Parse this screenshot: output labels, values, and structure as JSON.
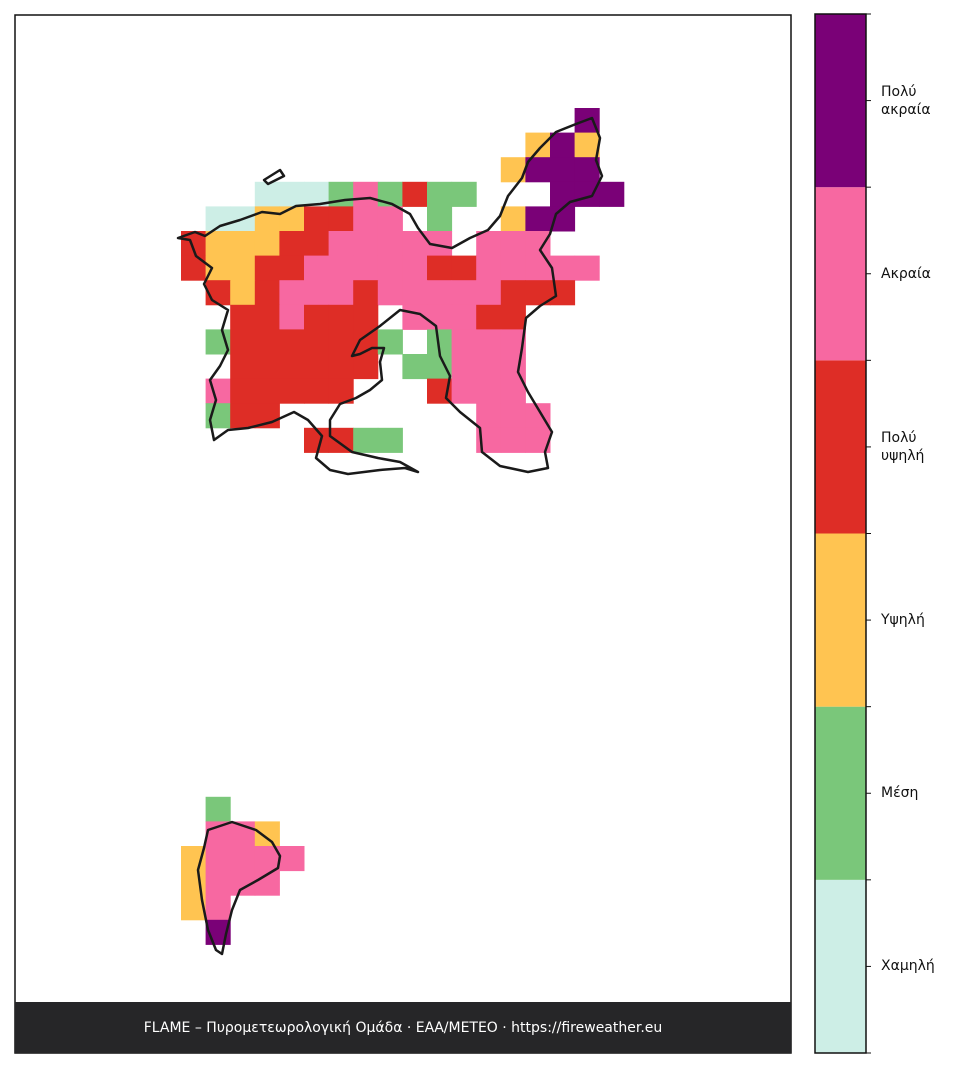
{
  "map": {
    "footer": "FLAME – Πυρομετεωρολογική Ομάδα · ΕΑΑ/METEO · https://fireweather.eu",
    "legend": {
      "classes": [
        {
          "label": "Χαμηλή",
          "color": "#cdeee6"
        },
        {
          "label": "Μέση",
          "color": "#7ac77a"
        },
        {
          "label": "Υψηλή",
          "color": "#ffc451"
        },
        {
          "label": "Πολύ υψηλή",
          "color": "#de2d26"
        },
        {
          "label": "Ακραία",
          "color": "#f768a1"
        },
        {
          "label": "Πολύ ακραία",
          "color": "#7a0177"
        }
      ]
    }
  }
}
